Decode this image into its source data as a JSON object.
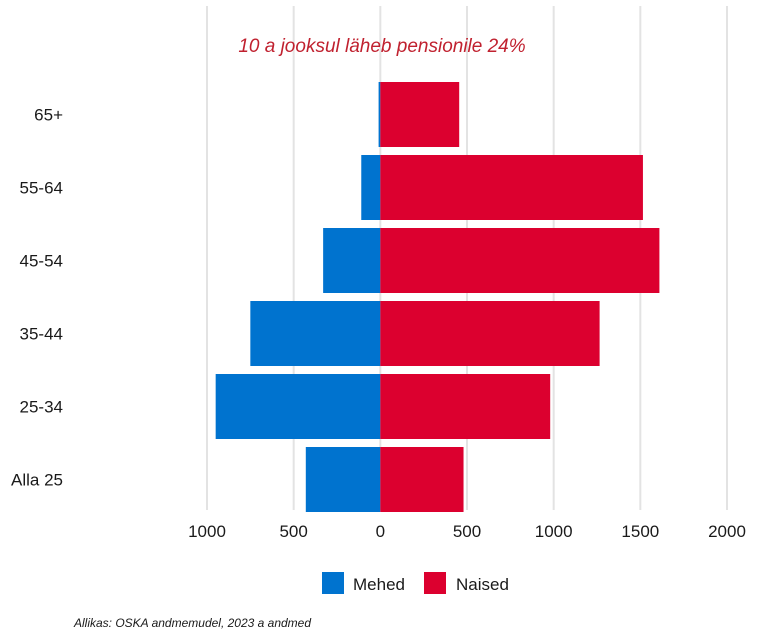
{
  "chart_data": {
    "type": "bar",
    "orientation": "horizontal-diverging",
    "title": "10 a jooksul läheb pensionile 24%",
    "categories": [
      "Alla 25",
      "25-34",
      "35-44",
      "45-54",
      "55-64",
      "65+"
    ],
    "series": [
      {
        "name": "Mehed",
        "values": [
          430,
          950,
          750,
          330,
          110,
          10
        ]
      },
      {
        "name": "Naised",
        "values": [
          480,
          980,
          1265,
          1610,
          1515,
          455
        ]
      }
    ],
    "x_ticks": [
      {
        "value": -1000,
        "label": "1000"
      },
      {
        "value": -500,
        "label": "500"
      },
      {
        "value": 0,
        "label": "0"
      },
      {
        "value": 500,
        "label": "500"
      },
      {
        "value": 1000,
        "label": "1000"
      },
      {
        "value": 1500,
        "label": "1500"
      },
      {
        "value": 2000,
        "label": "2000"
      }
    ],
    "xlim": [
      -1000,
      2000
    ],
    "grid": "vertical",
    "legend_position": "bottom",
    "source": "Allikas: OSKA andmemudel, 2023 a andmed",
    "colors": {
      "Mehed": "#0073cf",
      "Naised": "#dc002f",
      "title": "#c0212f",
      "grid": "#e3e3e3"
    }
  }
}
